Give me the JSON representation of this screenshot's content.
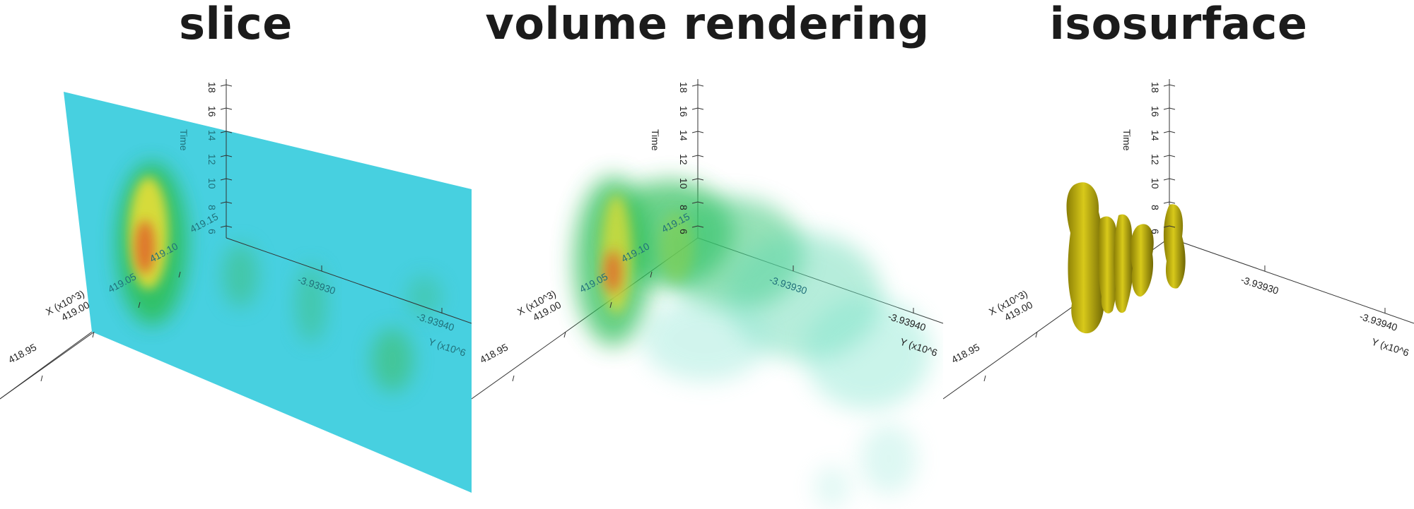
{
  "panels": [
    {
      "title": "slice"
    },
    {
      "title": "volume rendering"
    },
    {
      "title": "isosurface"
    }
  ],
  "axes": {
    "x_label": "X (x10^3)",
    "y_label": "Y (x10^6",
    "time_label": "Time",
    "x_ticks": [
      "418.95",
      "419.00",
      "419.05",
      "419.10",
      "419.15"
    ],
    "y_ticks": [
      "-3.93930",
      "-3.93940"
    ],
    "time_ticks": [
      "6",
      "8",
      "10",
      "12",
      "14",
      "16",
      "18"
    ]
  },
  "colors": {
    "slice_plane": "#47d0e0",
    "density_low": "#2fbf5a",
    "density_mid": "#d6db3a",
    "density_high": "#e06a2a",
    "isosurface": "#c2b40a",
    "axis_line": "#333333"
  }
}
